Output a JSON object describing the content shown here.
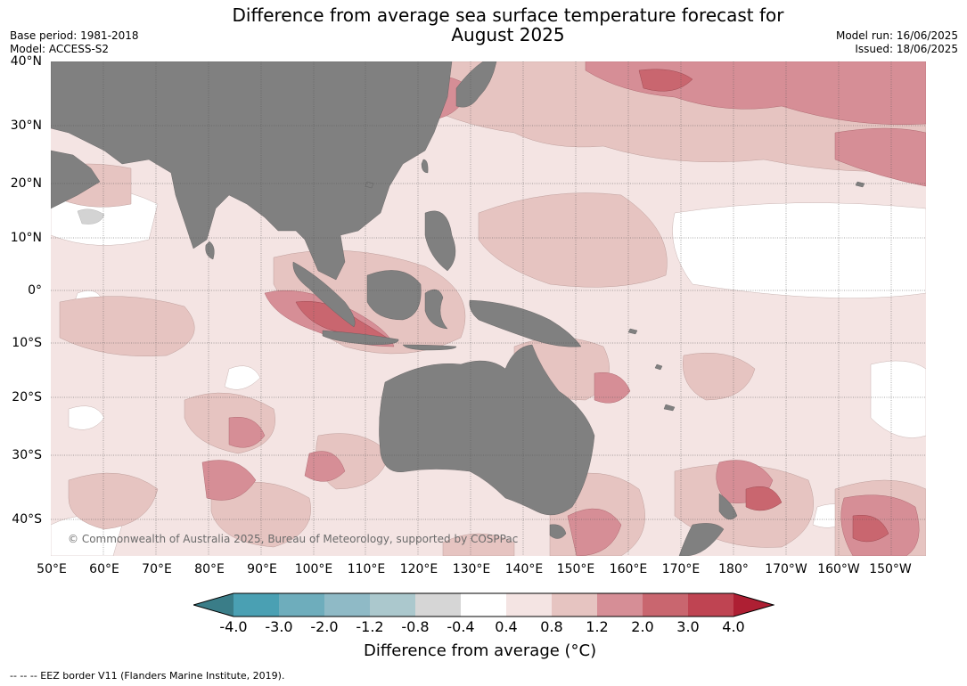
{
  "title": {
    "line1": "Difference from average sea surface temperature forecast for",
    "line2": "August 2025"
  },
  "meta_left": {
    "base_period": "Base period: 1981-2018",
    "model": "Model: ACCESS-S2"
  },
  "meta_right": {
    "model_run": "Model run: 16/06/2025",
    "issued": "Issued: 18/06/2025"
  },
  "lat_labels": [
    "40°N",
    "30°N",
    "20°N",
    "10°N",
    "0°",
    "10°S",
    "20°S",
    "30°S",
    "40°S"
  ],
  "lon_labels": [
    "50°E",
    "60°E",
    "70°E",
    "80°E",
    "90°E",
    "100°E",
    "110°E",
    "120°E",
    "130°E",
    "140°E",
    "150°E",
    "160°E",
    "170°E",
    "180°",
    "170°W",
    "160°W",
    "150°W"
  ],
  "copyright": "© Commonwealth of Australia 2025, Bureau of Meteorology, supported by COSPPac",
  "colorbar": {
    "ticks": [
      "-4.0",
      "-3.0",
      "-2.0",
      "-1.2",
      "-0.8",
      "-0.4",
      "0.4",
      "0.8",
      "1.2",
      "2.0",
      "3.0",
      "4.0"
    ],
    "colors": [
      "#3a7d88",
      "#4aa0b3",
      "#6eadbc",
      "#8fbac6",
      "#abc8cd",
      "#d6d6d6",
      "#ffffff",
      "#f4e4e3",
      "#e6c4c1",
      "#d68e96",
      "#c9666f",
      "#bf4452",
      "#ae1f33"
    ],
    "label": "Difference from average (°C)"
  },
  "footer": "--  --  -- EEZ border V11 (Flanders Marine Institute, 2019).",
  "map_colors": {
    "land": "#808080",
    "lake": "#d3d3d3",
    "ocean_base": "#f4e4e3"
  }
}
